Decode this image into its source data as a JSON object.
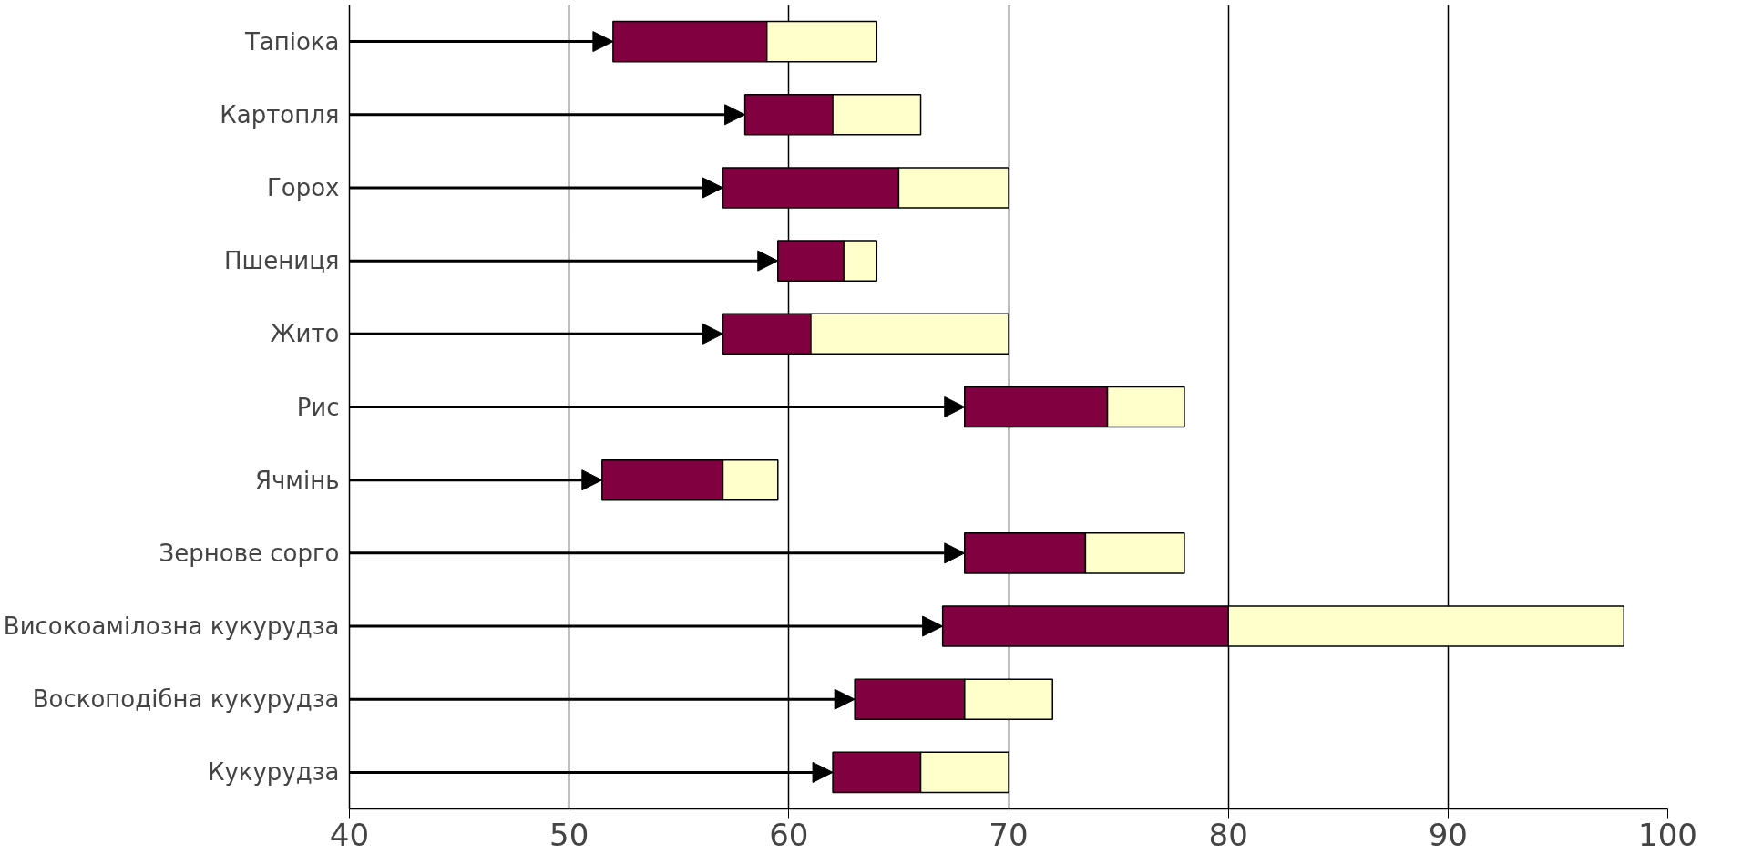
{
  "chart_data": {
    "type": "bar",
    "orientation": "horizontal",
    "categories": [
      "Тапіока",
      "Картопля",
      "Горох",
      "Пшениця",
      "Жито",
      "Рис",
      "Ячмінь",
      "Зернове сорго",
      "Високоамілозна кукурудза",
      "Воскоподібна кукурудза",
      "Кукурудза"
    ],
    "series": [
      {
        "color": "#800040",
        "base": [
          52,
          58,
          57,
          59.5,
          57,
          68,
          51.5,
          68,
          67,
          63,
          62
        ],
        "values": [
          7,
          4,
          8,
          3,
          4,
          6.5,
          5.5,
          5.5,
          13,
          5,
          4
        ]
      },
      {
        "color": "#ffffcc",
        "base": [
          59,
          62,
          65,
          62.5,
          61,
          74.5,
          57,
          73.5,
          80,
          68,
          66
        ],
        "values": [
          5,
          4,
          5,
          1.5,
          9,
          3.5,
          2.5,
          4.5,
          18,
          4,
          4
        ]
      }
    ],
    "xlim": [
      40,
      100
    ],
    "xticks": [
      40,
      50,
      60,
      70,
      80,
      90,
      100
    ],
    "grid": "x"
  }
}
